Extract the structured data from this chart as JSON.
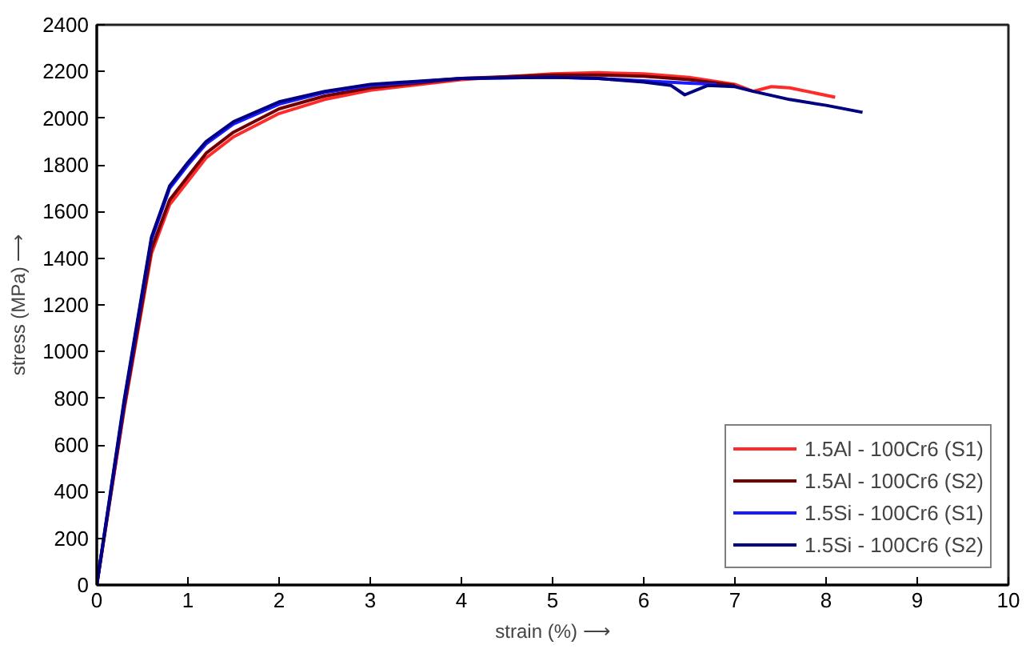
{
  "chart_data": {
    "type": "line",
    "xlabel": "strain (%) ⟶",
    "ylabel": "stress (MPa) ⟶",
    "xlim": [
      0,
      10
    ],
    "ylim": [
      0,
      2400
    ],
    "xticks": [
      0,
      1,
      2,
      3,
      4,
      5,
      6,
      7,
      8,
      9,
      10
    ],
    "yticks": [
      0,
      200,
      400,
      600,
      800,
      1000,
      1200,
      1400,
      1600,
      1800,
      2000,
      2200,
      2400
    ],
    "grid": false,
    "legend": "bottom right",
    "marker": "none",
    "line_style": "solid",
    "series": [
      {
        "name": "1.5Al - 100Cr6 (S1)",
        "color": "#ff2a2a",
        "x": [
          0,
          0.3,
          0.6,
          0.8,
          1.0,
          1.2,
          1.5,
          2.0,
          2.5,
          3.0,
          4.0,
          5.0,
          5.5,
          6.0,
          6.5,
          7.0,
          7.2,
          7.4,
          7.6,
          8.1
        ],
        "values": [
          0,
          750,
          1420,
          1630,
          1730,
          1830,
          1920,
          2020,
          2080,
          2120,
          2165,
          2190,
          2195,
          2190,
          2175,
          2145,
          2115,
          2135,
          2130,
          2090
        ]
      },
      {
        "name": "1.5Al - 100Cr6 (S2)",
        "color": "#700000",
        "x": [
          0,
          0.3,
          0.6,
          0.8,
          1.0,
          1.2,
          1.5,
          2.0,
          2.5,
          3.0,
          4.0,
          5.0,
          5.5,
          6.0,
          6.5,
          7.0
        ],
        "values": [
          0,
          760,
          1440,
          1650,
          1750,
          1850,
          1940,
          2040,
          2095,
          2130,
          2170,
          2185,
          2185,
          2180,
          2165,
          2140
        ]
      },
      {
        "name": "1.5Si - 100Cr6 (S1)",
        "color": "#1a1aff",
        "x": [
          0,
          0.3,
          0.6,
          0.8,
          1.0,
          1.2,
          1.5,
          2.0,
          2.5,
          3.0,
          4.0,
          5.0,
          5.5,
          6.0,
          6.5,
          6.8
        ],
        "values": [
          0,
          780,
          1480,
          1700,
          1800,
          1890,
          1975,
          2060,
          2110,
          2140,
          2170,
          2175,
          2170,
          2160,
          2150,
          2145
        ]
      },
      {
        "name": "1.5Si - 100Cr6 (S2)",
        "color": "#000080",
        "x": [
          0,
          0.3,
          0.6,
          0.8,
          1.0,
          1.2,
          1.5,
          2.0,
          2.5,
          3.0,
          4.0,
          5.0,
          5.5,
          6.0,
          6.3,
          6.45,
          6.7,
          7.0,
          7.2,
          7.6,
          8.0,
          8.4
        ],
        "values": [
          0,
          790,
          1490,
          1710,
          1810,
          1900,
          1985,
          2070,
          2115,
          2145,
          2170,
          2175,
          2170,
          2155,
          2140,
          2100,
          2140,
          2135,
          2115,
          2080,
          2055,
          2025
        ]
      }
    ]
  }
}
